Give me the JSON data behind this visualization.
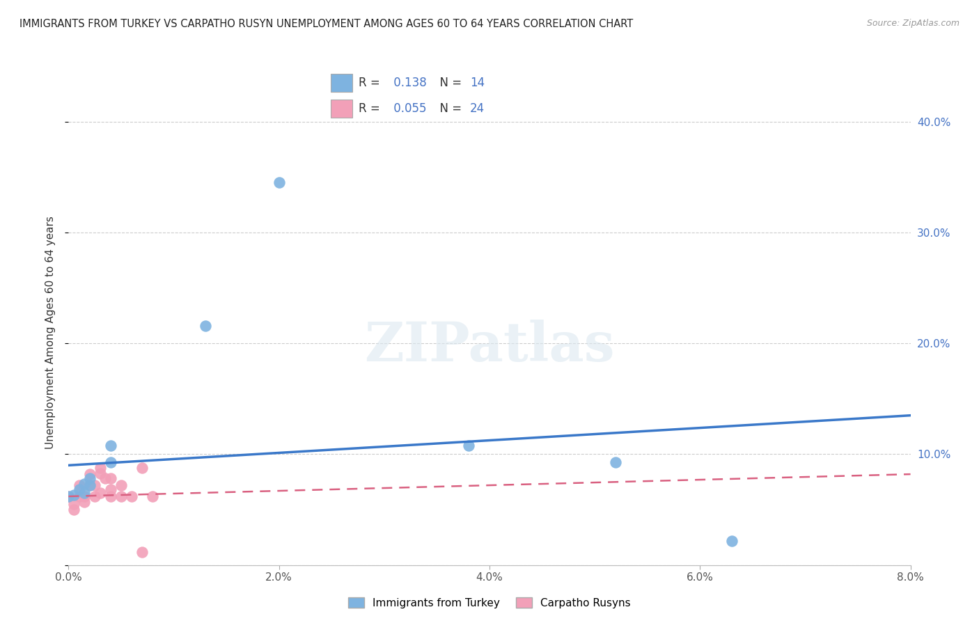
{
  "title": "IMMIGRANTS FROM TURKEY VS CARPATHO RUSYN UNEMPLOYMENT AMONG AGES 60 TO 64 YEARS CORRELATION CHART",
  "source": "Source: ZipAtlas.com",
  "ylabel": "Unemployment Among Ages 60 to 64 years",
  "legend_label1": "Immigrants from Turkey",
  "legend_label2": "Carpatho Rusyns",
  "r1": 0.138,
  "n1": 14,
  "r2": 0.055,
  "n2": 24,
  "xlim": [
    0.0,
    0.08
  ],
  "ylim": [
    0.0,
    0.42
  ],
  "xticks": [
    0.0,
    0.02,
    0.04,
    0.06,
    0.08
  ],
  "yticks": [
    0.0,
    0.1,
    0.2,
    0.3,
    0.4
  ],
  "xtick_labels": [
    "0.0%",
    "",
    "2.0%",
    "",
    "4.0%",
    "",
    "6.0%",
    "",
    "8.0%"
  ],
  "xtick_positions": [
    0.0,
    0.01,
    0.02,
    0.03,
    0.04,
    0.05,
    0.06,
    0.07,
    0.08
  ],
  "ytick_labels_right": [
    "",
    "10.0%",
    "20.0%",
    "30.0%",
    "40.0%"
  ],
  "color_blue": "#7eb3e0",
  "color_pink": "#f2a0b8",
  "color_line_blue": "#3a78c9",
  "color_line_pink": "#d96080",
  "background": "#ffffff",
  "watermark": "ZIPatlas",
  "blue_scatter_x": [
    0.004,
    0.013,
    0.0005,
    0.0,
    0.001,
    0.0015,
    0.002,
    0.004,
    0.0015,
    0.002,
    0.038,
    0.052,
    0.063,
    0.02
  ],
  "blue_scatter_y": [
    0.093,
    0.216,
    0.063,
    0.062,
    0.068,
    0.073,
    0.072,
    0.108,
    0.065,
    0.078,
    0.108,
    0.093,
    0.022,
    0.345
  ],
  "pink_scatter_x": [
    0.0,
    0.0005,
    0.0005,
    0.001,
    0.001,
    0.0015,
    0.0015,
    0.002,
    0.002,
    0.0025,
    0.0025,
    0.003,
    0.003,
    0.003,
    0.0035,
    0.004,
    0.004,
    0.004,
    0.005,
    0.005,
    0.006,
    0.007,
    0.007,
    0.008
  ],
  "pink_scatter_y": [
    0.062,
    0.055,
    0.05,
    0.062,
    0.072,
    0.057,
    0.062,
    0.072,
    0.082,
    0.062,
    0.072,
    0.083,
    0.088,
    0.065,
    0.078,
    0.062,
    0.068,
    0.078,
    0.062,
    0.072,
    0.062,
    0.088,
    0.012,
    0.062
  ],
  "blue_line_x0": 0.0,
  "blue_line_y0": 0.09,
  "blue_line_x1": 0.08,
  "blue_line_y1": 0.135,
  "pink_line_x0": 0.0,
  "pink_line_y0": 0.062,
  "pink_line_x1": 0.08,
  "pink_line_y1": 0.082
}
